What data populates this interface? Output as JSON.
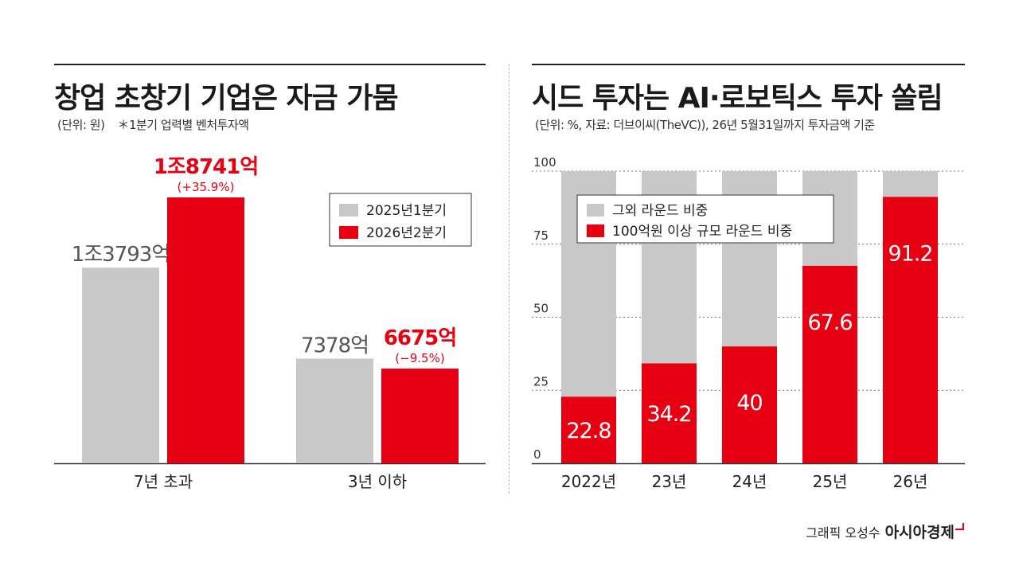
{
  "left": {
    "title": "창업 초창기 기업은 자금 가뭄",
    "unit": "(단위: 원)",
    "note": "＊1분기 업력별 벤처투자액",
    "chart_data": {
      "type": "bar",
      "categories": [
        "7년 초과",
        "3년 이하"
      ],
      "series": [
        {
          "name": "2025년1분기",
          "color": "#c8c8c8",
          "values": [
            13793,
            7378
          ],
          "labels": [
            "1조3793억",
            "7378억"
          ],
          "changes": [
            "",
            ""
          ]
        },
        {
          "name": "2026년2분기",
          "color": "#e60012",
          "values": [
            18741,
            6675
          ],
          "labels": [
            "1조8741억",
            "6675억"
          ],
          "changes": [
            "(+35.9%)",
            "(−9.5%)"
          ]
        }
      ],
      "legend_position": "right"
    }
  },
  "right": {
    "title": "시드 투자는 AI·로보틱스 투자 쏠림",
    "subtitle": "(단위: %, 자료: 더브이씨(TheVC)), 26년 5월31일까지 투자금액 기준",
    "chart_data": {
      "type": "bar",
      "stacked": true,
      "categories": [
        "2022년",
        "23년",
        "24년",
        "25년",
        "26년"
      ],
      "series": [
        {
          "name": "100억원 이상 규모 라운드 비중",
          "color": "#e60012",
          "values": [
            22.8,
            34.2,
            40,
            67.6,
            91.2
          ]
        },
        {
          "name": "그외 라운드 비중",
          "color": "#c8c8c8",
          "values": [
            77.2,
            65.8,
            60,
            32.4,
            8.8
          ]
        }
      ],
      "yticks": [
        0,
        25,
        50,
        75,
        100
      ],
      "ylim": [
        0,
        100
      ],
      "grid": true,
      "legend_position": "top-left"
    }
  },
  "credit": {
    "text": "그래픽 오성수",
    "brand": "아시아경제"
  }
}
